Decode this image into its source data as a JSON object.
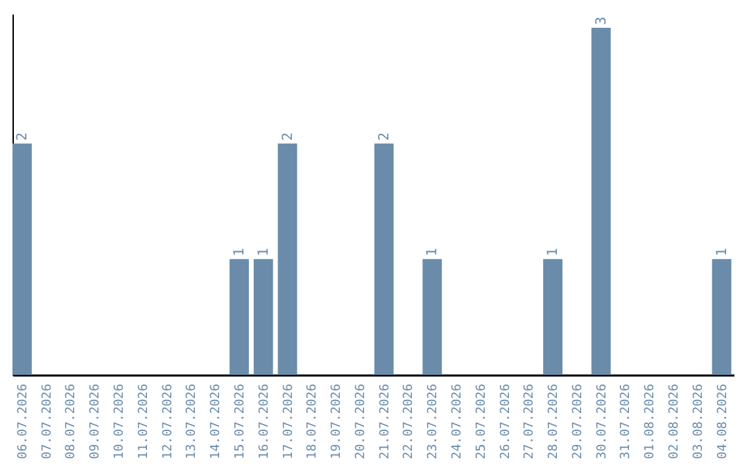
{
  "chart_data": {
    "type": "bar",
    "categories": [
      "06.07.2026",
      "07.07.2026",
      "08.07.2026",
      "09.07.2026",
      "10.07.2026",
      "11.07.2026",
      "12.07.2026",
      "13.07.2026",
      "14.07.2026",
      "15.07.2026",
      "16.07.2026",
      "17.07.2026",
      "18.07.2026",
      "19.07.2026",
      "20.07.2026",
      "21.07.2026",
      "22.07.2026",
      "23.07.2026",
      "24.07.2026",
      "25.07.2026",
      "26.07.2026",
      "27.07.2026",
      "28.07.2026",
      "29.07.2026",
      "30.07.2026",
      "31.07.2026",
      "01.08.2026",
      "02.08.2026",
      "03.08.2026",
      "04.08.2026"
    ],
    "values": [
      2,
      0,
      0,
      0,
      0,
      0,
      0,
      0,
      0,
      1,
      1,
      2,
      0,
      0,
      0,
      2,
      0,
      1,
      0,
      0,
      0,
      0,
      1,
      0,
      3,
      0,
      0,
      0,
      0,
      1
    ],
    "value_labels": [
      "2",
      null,
      null,
      null,
      null,
      null,
      null,
      null,
      null,
      "1",
      "1",
      "2",
      null,
      null,
      null,
      "2",
      null,
      "1",
      null,
      null,
      null,
      null,
      "1",
      null,
      "3",
      null,
      null,
      null,
      null,
      "1"
    ],
    "color": "#6a8caa",
    "ylim": [
      0,
      3.12
    ],
    "tick_labels": "x"
  }
}
